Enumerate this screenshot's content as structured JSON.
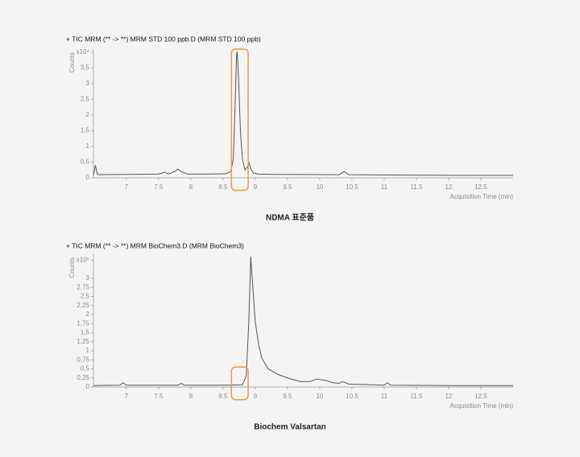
{
  "chart_data": [
    {
      "type": "line",
      "title": "+ TIC MRM (** -> **) MRM STD 100 ppb.D (MRM STD 100 ppb)",
      "caption": "NDMA 표준품",
      "y_label": "Counts",
      "x_label": "Acquisition Time (min)",
      "xlim": [
        6.49,
        13.0
      ],
      "ylim": [
        0,
        4.05
      ],
      "xticks": [
        7,
        7.5,
        8,
        8.5,
        9,
        9.5,
        10,
        10.5,
        11,
        11.5,
        12,
        12.5
      ],
      "yticks": [
        0,
        {
          "value": 0.5,
          "label": "0,5"
        },
        1,
        {
          "value": 1.5,
          "label": "1,5"
        },
        2,
        {
          "value": 2.5,
          "label": "2,5"
        },
        3,
        {
          "value": 3.5,
          "label": "3,5"
        },
        {
          "value": 4,
          "label": "x10⁴"
        }
      ],
      "highlight": {
        "xlim": [
          8.63,
          8.89
        ],
        "ylim": [
          -0.4,
          4.1
        ],
        "color": "#e8a33d"
      },
      "series": [
        {
          "color": "#555555",
          "x": [
            6.49,
            6.52,
            6.55,
            6.58,
            7.0,
            7.5,
            7.6,
            7.65,
            7.75,
            7.8,
            7.85,
            7.95,
            8.3,
            8.55,
            8.62,
            8.66,
            8.69,
            8.71,
            8.72,
            8.74,
            8.77,
            8.8,
            8.84,
            8.88,
            8.9,
            8.93,
            8.97,
            9.05,
            9.3,
            10.3,
            10.38,
            10.45,
            11.0,
            12.0,
            13.0
          ],
          "values": [
            0.08,
            0.4,
            0.12,
            0.1,
            0.11,
            0.12,
            0.18,
            0.12,
            0.2,
            0.28,
            0.2,
            0.12,
            0.12,
            0.13,
            0.2,
            0.6,
            2.5,
            3.9,
            4.02,
            3.2,
            1.5,
            0.6,
            0.25,
            0.35,
            0.5,
            0.3,
            0.15,
            0.12,
            0.11,
            0.1,
            0.2,
            0.1,
            0.09,
            0.08,
            0.08
          ]
        }
      ]
    },
    {
      "type": "line",
      "title": "+ TIC MRM (** -> **) MRM BioChem3.D (MRM BioChem3)",
      "caption": "Biochem Valsartan",
      "y_label": "Counts",
      "x_label": "Acquisition Time (min)",
      "xlim": [
        6.49,
        13.0
      ],
      "ylim": [
        0,
        3.62
      ],
      "xticks": [
        7,
        7.5,
        8,
        8.5,
        9,
        9.5,
        10,
        10.5,
        11,
        11.5,
        12,
        12.5
      ],
      "yticks": [
        0,
        {
          "value": 0.25,
          "label": "0,25"
        },
        {
          "value": 0.5,
          "label": "0,5"
        },
        {
          "value": 0.75,
          "label": "0,75"
        },
        1,
        {
          "value": 1.25,
          "label": "1,25"
        },
        {
          "value": 1.5,
          "label": "1,5"
        },
        {
          "value": 1.75,
          "label": "1,75"
        },
        2,
        {
          "value": 2.25,
          "label": "2,25"
        },
        {
          "value": 2.5,
          "label": "2,5"
        },
        {
          "value": 2.75,
          "label": "2,75"
        },
        3,
        {
          "value": 3.5,
          "label": "x10⁵"
        }
      ],
      "highlight": {
        "xlim": [
          8.63,
          8.89
        ],
        "ylim": [
          -0.35,
          0.55
        ],
        "color": "#e8a33d"
      },
      "series": [
        {
          "color": "#555555",
          "x": [
            6.49,
            6.9,
            6.95,
            7.0,
            7.8,
            7.85,
            7.9,
            8.5,
            8.8,
            8.86,
            8.9,
            8.93,
            8.96,
            9.0,
            9.05,
            9.1,
            9.2,
            9.35,
            9.5,
            9.7,
            9.85,
            9.95,
            10.1,
            10.2,
            10.3,
            10.35,
            10.45,
            11.0,
            11.05,
            11.1,
            12.0,
            13.0
          ],
          "values": [
            0.04,
            0.05,
            0.12,
            0.05,
            0.05,
            0.1,
            0.05,
            0.05,
            0.06,
            0.3,
            1.8,
            3.6,
            2.8,
            1.8,
            1.2,
            0.8,
            0.5,
            0.35,
            0.25,
            0.15,
            0.15,
            0.22,
            0.18,
            0.12,
            0.1,
            0.15,
            0.08,
            0.05,
            0.12,
            0.05,
            0.04,
            0.04
          ]
        }
      ]
    }
  ]
}
